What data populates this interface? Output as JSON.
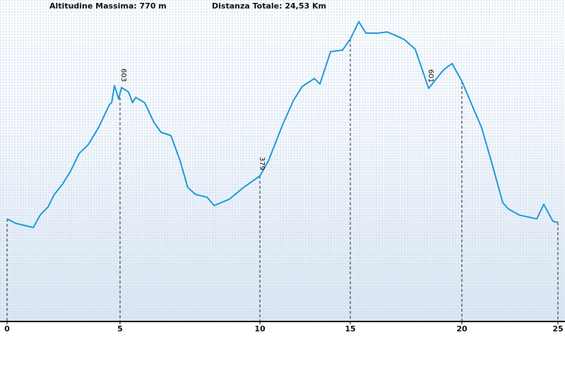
{
  "chart_data": {
    "type": "line",
    "title": "Altitudine Massima: 770 m",
    "subtitle": "Distanza Totale: 24,53 Km",
    "series": [
      {
        "name": "Altitudine",
        "color": "#1f9ad8",
        "x": [
          0,
          0.38,
          1.16,
          1.47,
          1.81,
          2.09,
          2.44,
          2.81,
          3.19,
          3.59,
          4.06,
          4.53,
          4.63,
          4.75,
          4.94,
          5.05,
          5.3,
          5.45,
          5.56,
          5.88,
          6.21,
          6.46,
          6.82,
          7.15,
          7.42,
          7.7,
          8.11,
          8.36,
          8.91,
          9.42,
          10,
          10.47,
          11.25,
          11.84,
          12.34,
          13.01,
          13.32,
          13.91,
          14.57,
          15,
          15.38,
          15.7,
          16.23,
          16.65,
          17.03,
          17.41,
          17.91,
          18.51,
          19.18,
          19.56,
          20,
          20.51,
          21.03,
          21.58,
          22.13,
          22.43,
          22.98,
          23.9,
          24.26,
          24.74,
          25
        ],
        "values": [
          270,
          259,
          248,
          280,
          300,
          332,
          357,
          391,
          436,
          458,
          503,
          560,
          565,
          608,
          574,
          603,
          592,
          565,
          578,
          565,
          515,
          490,
          481,
          417,
          350,
          332,
          325,
          304,
          320,
          350,
          379,
          417,
          508,
          569,
          606,
          626,
          612,
          694,
          698,
          726,
          770,
          741,
          741,
          744,
          735,
          725,
          700,
          601,
          648,
          664,
          619,
          560,
          501,
          408,
          311,
          295,
          280,
          270,
          307,
          264,
          261
        ]
      }
    ],
    "annotations": [
      {
        "x": 5.05,
        "value": 603
      },
      {
        "x": 10,
        "value": 379
      },
      {
        "x": 18.51,
        "value": 601
      }
    ],
    "xlim": [
      0,
      25
    ],
    "xticks": [
      0,
      5,
      10,
      15,
      20,
      25
    ],
    "ylim": [
      10,
      825
    ]
  }
}
